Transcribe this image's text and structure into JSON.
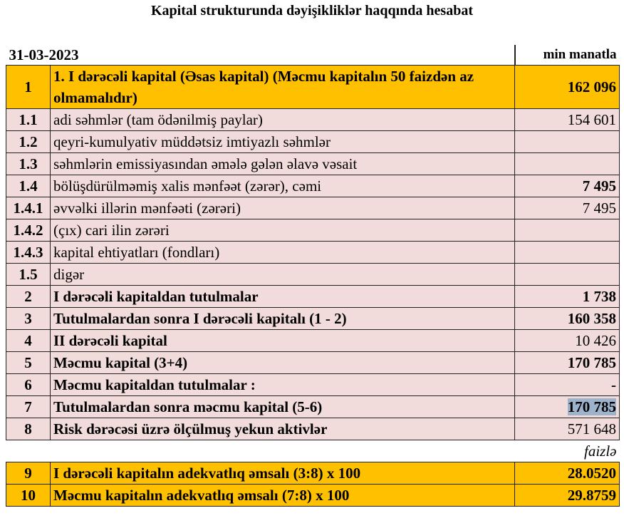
{
  "title": "Kapital strukturunda dəyişikliklər haqqında hesabat",
  "date": "31-03-2023",
  "unit": "min manatla",
  "percent_unit": "faizlə",
  "colors": {
    "highlight": "#ffc000",
    "row_bg": "#f2dcdb",
    "selection": "#9db3cc"
  },
  "rows": [
    {
      "no": "1",
      "label": "1. I dərəcəli kapital (Əsas kapital) (Məcmu kapitalın 50 faizdən  az olmamalıdır)",
      "value": "162 096"
    },
    {
      "no": "1.1",
      "label": "adi səhmlər (tam ödənilmiş paylar)",
      "value": "154 601"
    },
    {
      "no": "1.2",
      "label": "qeyri-kumulyativ müddətsiz imtiyazlı səhmlər",
      "value": ""
    },
    {
      "no": "1.3",
      "label": "səhmlərin emissiyasından əmələ gələn  əlavə vəsait",
      "value": ""
    },
    {
      "no": "1.4",
      "label": "bölüşdürülməmiş xalis mənfəət (zərər), cəmi",
      "value": "7 495"
    },
    {
      "no": "1.4.1",
      "label": "əvvəlki illərin mənfəəti (zərəri)",
      "value": "7 495"
    },
    {
      "no": "1.4.2",
      "label": "(çıx) cari ilin zərəri",
      "value": ""
    },
    {
      "no": "1.4.3",
      "label": "kapital ehtiyatları (fondları)",
      "value": ""
    },
    {
      "no": "1.5",
      "label": "digər",
      "value": ""
    },
    {
      "no": "2",
      "label": "I dərəcəli kapitaldan  tutulmalar",
      "value": "1 738"
    },
    {
      "no": "3",
      "label": "Tutulmalardan  sonra I dərəcəli kapitalı (1 - 2)",
      "value": "160 358"
    },
    {
      "no": "4",
      "label": "II dərəcəli  kapital",
      "value": "10 426"
    },
    {
      "no": "5",
      "label": "Məcmu kapital (3+4)",
      "value": "170 785"
    },
    {
      "no": "6",
      "label": "Məcmu kapitaldan tutulmalar :",
      "value": "-"
    },
    {
      "no": "7",
      "label": "Tutulmalardan sonra məcmu kapital (5-6)",
      "value": "170 785"
    },
    {
      "no": "8",
      "label": "Risk dərəcəsi üzrə ölçülmuş  yekun aktivlər",
      "value": "571 648"
    },
    {
      "no": "9",
      "label": "I dərəcəli  kapitalın  adekvatlıq əmsalı (3:8) x 100",
      "value": "28.0520"
    },
    {
      "no": "10",
      "label": "Məcmu kapitalın  adekvatlıq  əmsalı (7:8) x 100",
      "value": "29.8759"
    }
  ]
}
